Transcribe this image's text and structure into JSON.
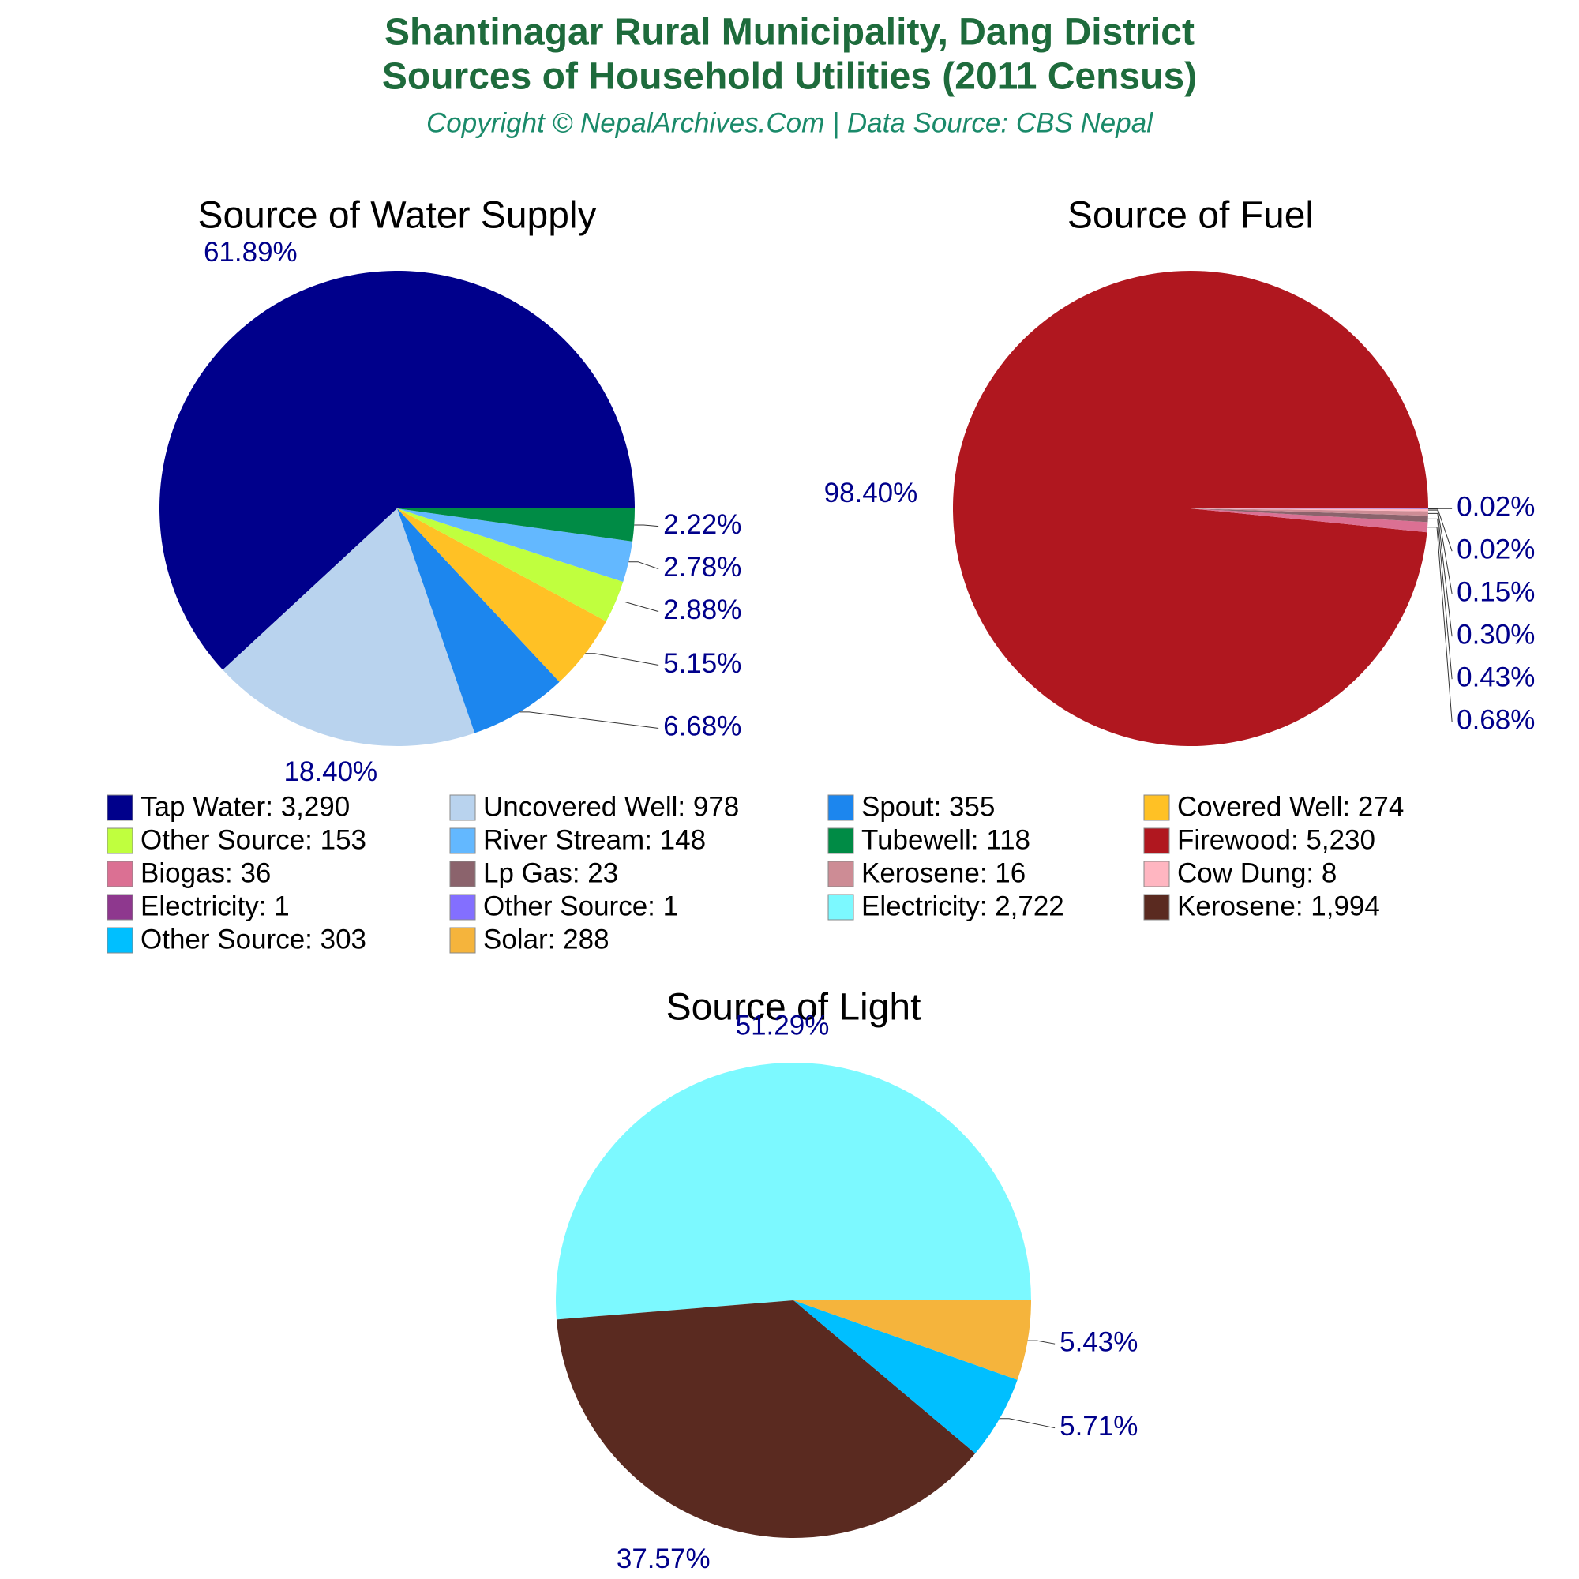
{
  "title": [
    "Shantinagar Rural Municipality, Dang District",
    "Sources of Household Utilities (2011 Census)"
  ],
  "subtitle": "Copyright © NepalArchives.Com | Data Source: CBS Nepal",
  "chart_data": [
    {
      "type": "pie",
      "title": "Source of Water Supply",
      "categories": [
        "Tap Water: 3,290",
        "Uncovered Well: 978",
        "Spout: 355",
        "Covered Well: 274",
        "Other Source: 153",
        "River Stream: 148",
        "Tubewell: 118"
      ],
      "values": [
        61.89,
        18.4,
        6.68,
        5.15,
        2.88,
        2.78,
        2.22
      ],
      "value_labels": [
        "61.89%",
        "18.40%",
        "6.68%",
        "5.15%",
        "2.88%",
        "2.78%",
        "2.22%"
      ],
      "colors": [
        "#00008b",
        "#b9d3ee",
        "#1c86ee",
        "#ffc125",
        "#c0ff3e",
        "#63b8ff",
        "#008b45"
      ]
    },
    {
      "type": "pie",
      "title": "Source of Fuel",
      "categories": [
        "Firewood: 5,230",
        "Biogas: 36",
        "Lp Gas: 23",
        "Kerosene: 16",
        "Cow Dung: 8",
        "Electricity: 1",
        "Other Source: 1"
      ],
      "values": [
        98.4,
        0.68,
        0.43,
        0.3,
        0.15,
        0.02,
        0.02
      ],
      "value_labels": [
        "98.40%",
        "0.68%",
        "0.43%",
        "0.30%",
        "0.15%",
        "0.02%",
        "0.02%"
      ],
      "colors": [
        "#b0171f",
        "#db7093",
        "#8b636c",
        "#cd8c95",
        "#ffb6c1",
        "#8e388e",
        "#836fff"
      ]
    },
    {
      "type": "pie",
      "title": "Source of Light",
      "categories": [
        "Electricity: 2,722",
        "Kerosene: 1,994",
        "Other Source: 303",
        "Solar: 288"
      ],
      "values": [
        51.29,
        37.57,
        5.71,
        5.43
      ],
      "value_labels": [
        "51.29%",
        "37.57%",
        "5.71%",
        "5.43%"
      ],
      "colors": [
        "#7cf9ff",
        "#5a2a20",
        "#00bfff",
        "#f5b43c"
      ]
    }
  ]
}
